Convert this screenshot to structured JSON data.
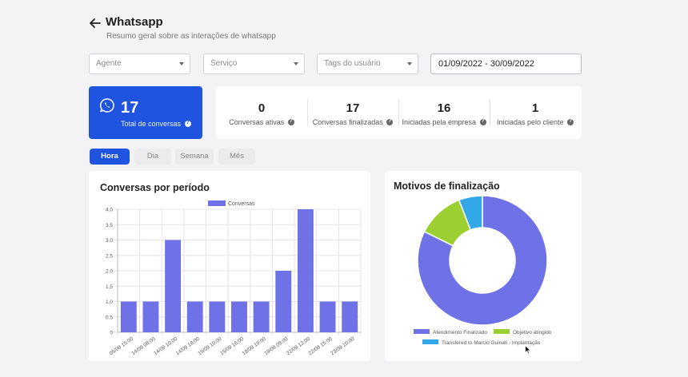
{
  "header": {
    "title": "Whatsapp",
    "subtitle": "Resumo geral sobre as interações de whatsapp"
  },
  "filters": {
    "agente": "Agente",
    "servico": "Serviço",
    "tags": "Tags do usuário",
    "date_range": "01/09/2022 - 30/09/2022"
  },
  "total": {
    "value": "17",
    "label": "Total de conversas"
  },
  "stats": [
    {
      "value": "0",
      "label": "Conversas ativas"
    },
    {
      "value": "17",
      "label": "Conversas finalizadas"
    },
    {
      "value": "16",
      "label": "Iniciadas pela empresa"
    },
    {
      "value": "1",
      "label": "Iniciadas pelo cliente"
    }
  ],
  "tabs": [
    "Hora",
    "Dia",
    "Semana",
    "Mês"
  ],
  "colors": {
    "brand": "#1f54e0",
    "bar": "#6f72e6",
    "donut_1": "#6f72e6",
    "donut_2": "#9cd032",
    "donut_3": "#33a8e8"
  },
  "chart_data": [
    {
      "type": "bar",
      "title": "Conversas por período",
      "categories": [
        "05/09 15:00",
        "14/09 08:00",
        "14/09 10:00",
        "14/09 18:00",
        "15/09 10:00",
        "15/09 16:00",
        "18/09 19:00",
        "19/09 09:00",
        "22/09 12:00",
        "22/09 15:00",
        "23/09 10:00"
      ],
      "series": [
        {
          "name": "Conversas",
          "values": [
            1,
            1,
            3,
            1,
            1,
            1,
            1,
            2,
            4,
            1,
            1
          ]
        }
      ],
      "ylim": [
        0,
        4
      ],
      "yticks": [
        "0",
        "0.5",
        "1.0",
        "1.5",
        "2.0",
        "2.5",
        "3.0",
        "3.5",
        "4.0"
      ],
      "grid": true,
      "legend": "top-center"
    },
    {
      "type": "pie",
      "title": "Motivos de finalização",
      "categories": [
        "Atendimento Finalizado",
        "Objetivo atingido",
        "Transfered to Marcio Guinati - Implantação"
      ],
      "values": [
        14,
        2,
        1
      ],
      "legend": "bottom"
    }
  ]
}
